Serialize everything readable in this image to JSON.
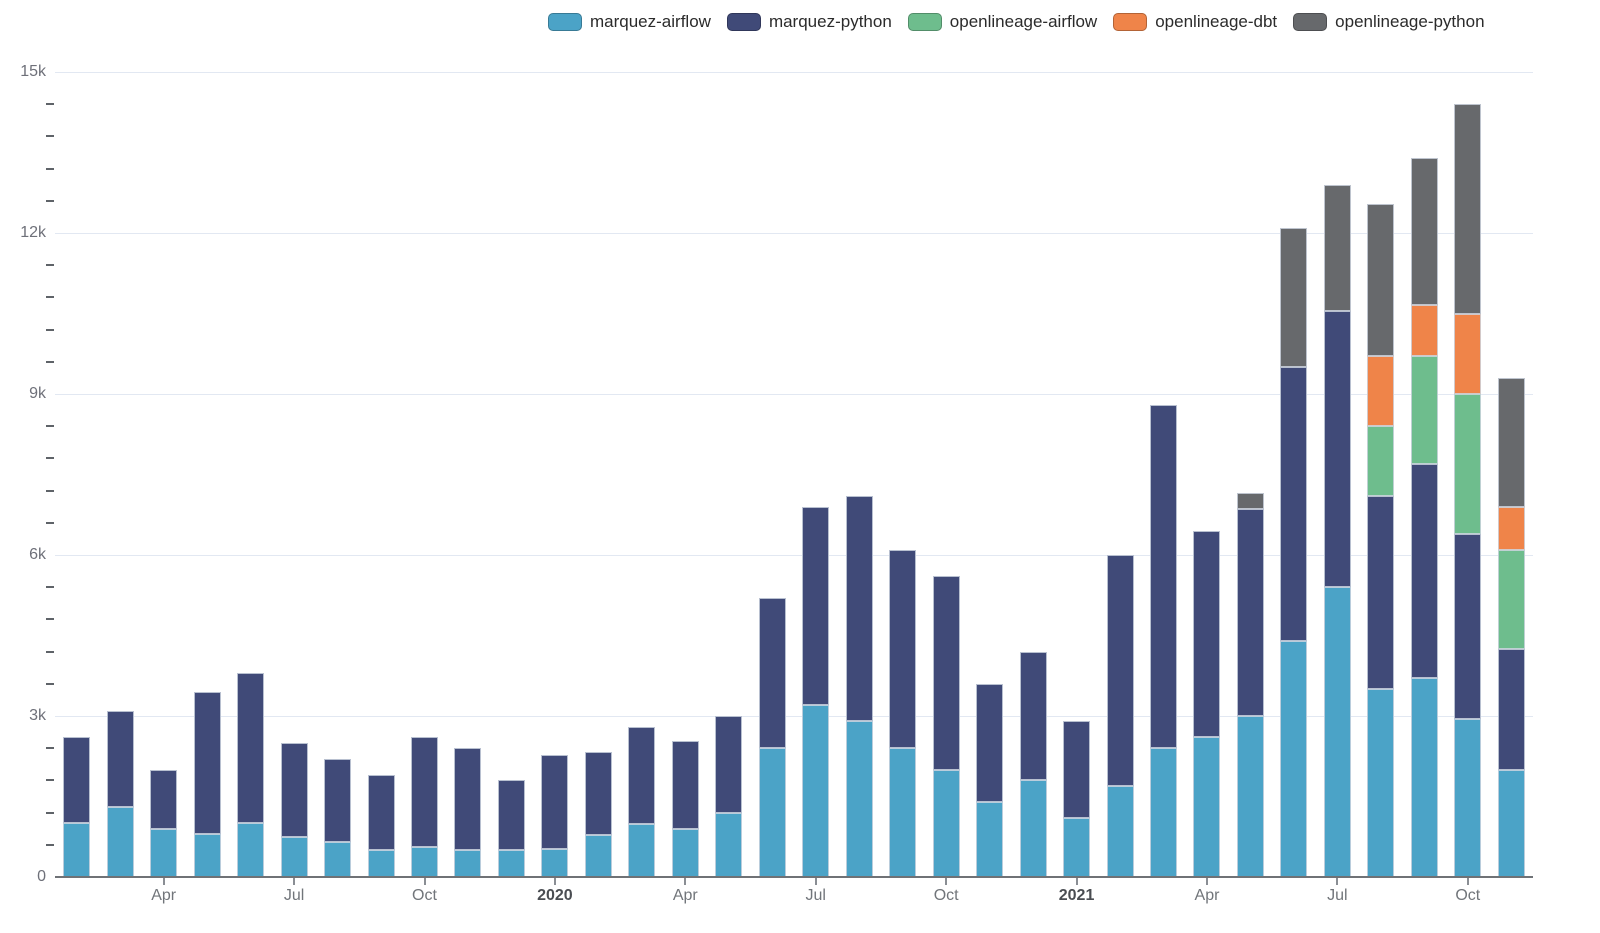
{
  "chart": {
    "background": "#ffffff",
    "grid_color": "#E2E8F2",
    "axis_color": "#6F7276",
    "axis_text_color": "#6E7079",
    "year_text_color": "#4A4D52",
    "legend_text_color": "#2B2B2B"
  },
  "legend": {
    "items": [
      {
        "label": "marquez-airflow",
        "color": "#4BA3C7"
      },
      {
        "label": "marquez-python",
        "color": "#404A78"
      },
      {
        "label": "openlineage-airflow",
        "color": "#6EBD8D"
      },
      {
        "label": "openlineage-dbt",
        "color": "#EF8449"
      },
      {
        "label": "openlineage-python",
        "color": "#67696C"
      }
    ]
  },
  "chart_data": {
    "type": "bar",
    "stacked": true,
    "title": "",
    "xlabel": "",
    "ylabel": "",
    "legend_position": "top",
    "grid": "horizontal-major-lines",
    "x": [
      "2019-02",
      "2019-03",
      "2019-04",
      "2019-05",
      "2019-06",
      "2019-07",
      "2019-08",
      "2019-09",
      "2019-10",
      "2019-11",
      "2019-12",
      "2020-01",
      "2020-02",
      "2020-03",
      "2020-04",
      "2020-05",
      "2020-06",
      "2020-07",
      "2020-08",
      "2020-09",
      "2020-10",
      "2020-11",
      "2020-12",
      "2021-01",
      "2021-02",
      "2021-03",
      "2021-04",
      "2021-05",
      "2021-06",
      "2021-07",
      "2021-08",
      "2021-09",
      "2021-10",
      "2021-11"
    ],
    "x_axis_ticks": [
      {
        "index": 2,
        "label": "Apr",
        "bold": false
      },
      {
        "index": 5,
        "label": "Jul",
        "bold": false
      },
      {
        "index": 8,
        "label": "Oct",
        "bold": false
      },
      {
        "index": 11,
        "label": "2020",
        "bold": true
      },
      {
        "index": 14,
        "label": "Apr",
        "bold": false
      },
      {
        "index": 17,
        "label": "Jul",
        "bold": false
      },
      {
        "index": 20,
        "label": "Oct",
        "bold": false
      },
      {
        "index": 23,
        "label": "2021",
        "bold": true
      },
      {
        "index": 26,
        "label": "Apr",
        "bold": false
      },
      {
        "index": 29,
        "label": "Jul",
        "bold": false
      },
      {
        "index": 32,
        "label": "Oct",
        "bold": false
      }
    ],
    "y_axis": {
      "min": 0,
      "max": 15000,
      "major_step": 3000,
      "minor_step": 600,
      "tick_labels": [
        "0",
        "3k",
        "6k",
        "9k",
        "12k",
        "15k"
      ]
    },
    "series": [
      {
        "name": "marquez-airflow",
        "color": "#4BA3C7",
        "values": [
          1000,
          1300,
          900,
          800,
          1000,
          750,
          650,
          500,
          560,
          500,
          500,
          530,
          780,
          990,
          900,
          1200,
          2400,
          3200,
          2900,
          2400,
          2000,
          1400,
          1800,
          1100,
          1700,
          2400,
          2600,
          3000,
          4400,
          5400,
          3500,
          3700,
          2950,
          2000
        ]
      },
      {
        "name": "marquez-python",
        "color": "#404A78",
        "values": [
          1600,
          1800,
          1100,
          2650,
          2800,
          1750,
          1550,
          1400,
          2040,
          1900,
          1300,
          1750,
          1550,
          1810,
          1640,
          1800,
          2800,
          3700,
          4200,
          3700,
          3600,
          2200,
          2400,
          1800,
          4300,
          6400,
          3850,
          3850,
          5100,
          5150,
          3600,
          4000,
          3450,
          2250
        ]
      },
      {
        "name": "openlineage-airflow",
        "color": "#6EBD8D",
        "values": [
          0,
          0,
          0,
          0,
          0,
          0,
          0,
          0,
          0,
          0,
          0,
          0,
          0,
          0,
          0,
          0,
          0,
          0,
          0,
          0,
          0,
          0,
          0,
          0,
          0,
          0,
          0,
          0,
          0,
          0,
          1300,
          2000,
          2600,
          1850
        ]
      },
      {
        "name": "openlineage-dbt",
        "color": "#EF8449",
        "values": [
          0,
          0,
          0,
          0,
          0,
          0,
          0,
          0,
          0,
          0,
          0,
          0,
          0,
          0,
          0,
          0,
          0,
          0,
          0,
          0,
          0,
          0,
          0,
          0,
          0,
          0,
          0,
          0,
          0,
          0,
          1300,
          950,
          1500,
          800
        ]
      },
      {
        "name": "openlineage-python",
        "color": "#67696C",
        "values": [
          0,
          0,
          0,
          0,
          0,
          0,
          0,
          0,
          0,
          0,
          0,
          0,
          0,
          0,
          0,
          0,
          0,
          0,
          0,
          0,
          0,
          0,
          0,
          0,
          0,
          0,
          0,
          300,
          2600,
          2350,
          2850,
          2750,
          3900,
          2400
        ]
      }
    ]
  }
}
